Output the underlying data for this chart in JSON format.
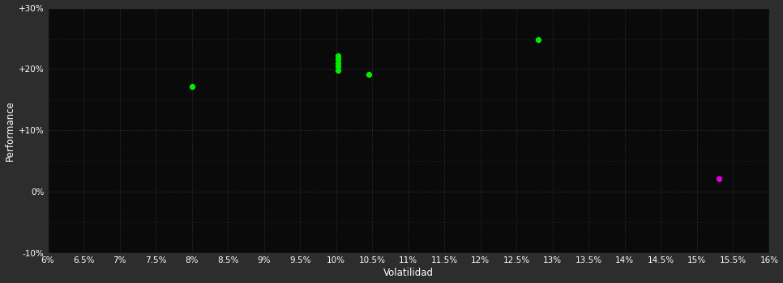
{
  "background_color": "#2d2d2d",
  "plot_bg_color": "#0a0a0a",
  "grid_color": "#3a3a3a",
  "text_color": "#ffffff",
  "xlabel": "Volatilidad",
  "ylabel": "Performance",
  "xlim": [
    0.06,
    0.16
  ],
  "ylim": [
    -0.1,
    0.3
  ],
  "green_points": [
    [
      0.1003,
      0.222
    ],
    [
      0.1003,
      0.216
    ],
    [
      0.1003,
      0.21
    ],
    [
      0.1003,
      0.204
    ],
    [
      0.1003,
      0.198
    ],
    [
      0.1045,
      0.191
    ],
    [
      0.08,
      0.171
    ],
    [
      0.128,
      0.248
    ]
  ],
  "magenta_points": [
    [
      0.153,
      0.022
    ]
  ],
  "green_color": "#00ee00",
  "magenta_color": "#dd00dd",
  "marker_size": 18,
  "grid_alpha": 1.0,
  "grid_linewidth": 0.6
}
